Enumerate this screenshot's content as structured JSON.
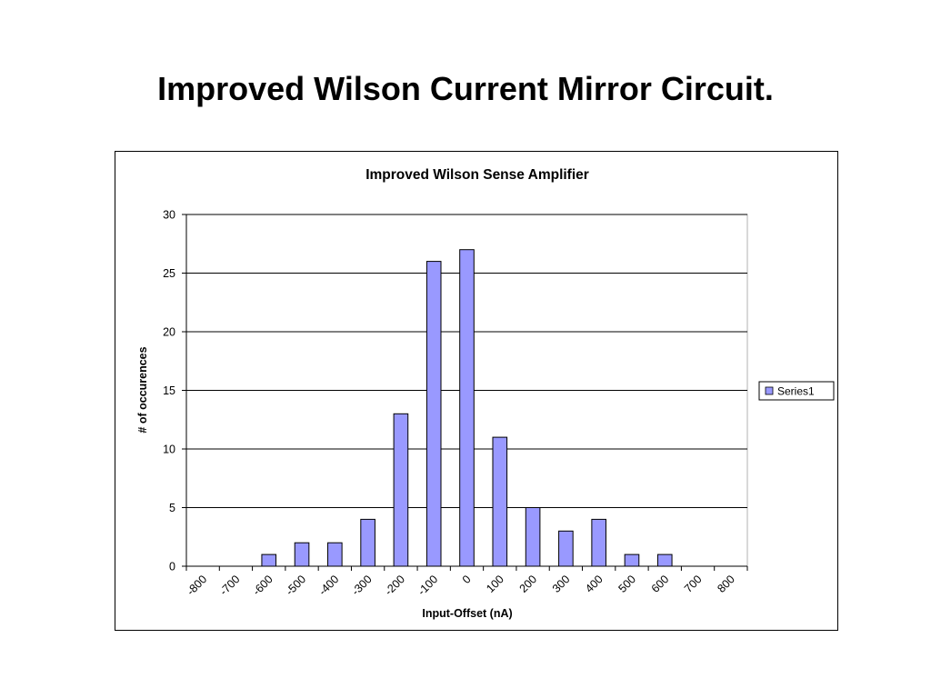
{
  "slide": {
    "title": "Improved Wilson Current Mirror Circuit."
  },
  "chart_data": {
    "type": "bar",
    "title": "Improved Wilson Sense Amplifier",
    "xlabel": "Input-Offset (nA)",
    "ylabel": "# of occurences",
    "x_tick_labels": [
      "-800",
      "-700",
      "-600",
      "-500",
      "-400",
      "-300",
      "-200",
      "-100",
      "0",
      "100",
      "200",
      "300",
      "400",
      "500",
      "600",
      "700",
      "800"
    ],
    "y_tick_labels": [
      "0",
      "5",
      "10",
      "15",
      "20",
      "25",
      "30"
    ],
    "ylim": [
      0,
      30
    ],
    "y_step": 5,
    "categories": [
      "-800",
      "-700",
      "-600",
      "-500",
      "-400",
      "-300",
      "-200",
      "-100",
      "0",
      "100",
      "200",
      "300",
      "400",
      "500",
      "600",
      "700",
      "800"
    ],
    "series": [
      {
        "name": "Series1",
        "color": "#9999ff",
        "values": [
          0,
          0,
          1,
          2,
          2,
          4,
          13,
          26,
          27,
          11,
          5,
          3,
          4,
          1,
          1,
          0,
          0
        ]
      }
    ],
    "grid": "horizontal",
    "legend_position": "right",
    "plot_background": "#ffffff",
    "bar_outline": "#000000"
  }
}
